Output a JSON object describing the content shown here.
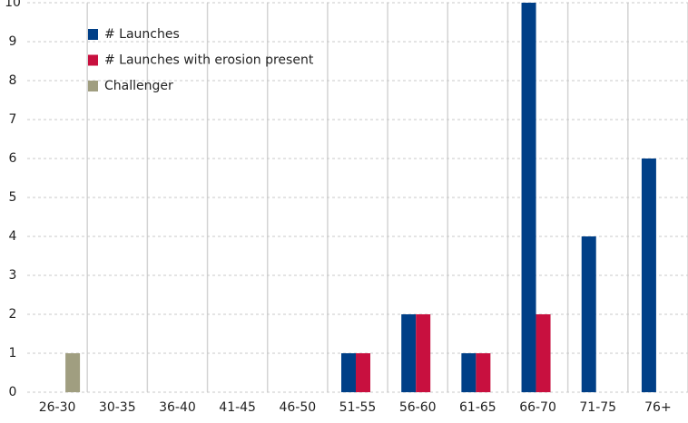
{
  "chart_data": {
    "type": "bar",
    "categories": [
      "26-30",
      "30-35",
      "36-40",
      "41-45",
      "46-50",
      "51-55",
      "56-60",
      "61-65",
      "66-70",
      "71-75",
      "76+"
    ],
    "series": [
      {
        "name": "# Launches",
        "color": "#003f87",
        "values": [
          0,
          0,
          0,
          0,
          0,
          1,
          2,
          1,
          10,
          4,
          6
        ]
      },
      {
        "name": "# Launches with erosion present",
        "color": "#c8103f",
        "values": [
          0,
          0,
          0,
          0,
          0,
          1,
          2,
          1,
          2,
          0,
          0
        ]
      },
      {
        "name": "Challenger",
        "color": "#a09e80",
        "values": [
          1,
          0,
          0,
          0,
          0,
          0,
          0,
          0,
          0,
          0,
          0
        ]
      }
    ],
    "ylim": [
      0,
      10
    ],
    "yticks": [
      0,
      1,
      2,
      3,
      4,
      5,
      6,
      7,
      8,
      9,
      10
    ],
    "grid": true,
    "legend": "upper left"
  }
}
